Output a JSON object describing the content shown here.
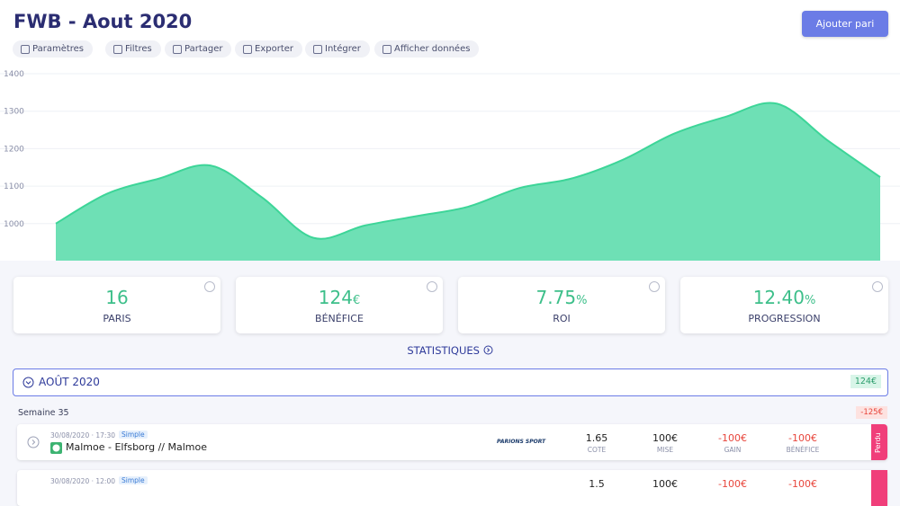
{
  "header": {
    "title": "FWB - Aout 2020",
    "button": "Ajouter pari"
  },
  "toolbar": [
    "Paramètres",
    "Filtres",
    "Partager",
    "Exporter",
    "Intégrer",
    "Afficher données"
  ],
  "chart_data": {
    "type": "area",
    "values": [
      1000,
      1080,
      1120,
      1155,
      1070,
      962,
      995,
      1020,
      1045,
      1095,
      1120,
      1170,
      1240,
      1285,
      1320,
      1220,
      1124
    ],
    "color": "#6ee0b5",
    "line_color": "#3dd598",
    "ylim": [
      900,
      1400
    ],
    "yticks": [
      1000,
      1100,
      1200,
      1300,
      1400
    ],
    "grid": true
  },
  "stats": [
    {
      "value": "16",
      "unit": null,
      "label": "PARIS"
    },
    {
      "value": "124",
      "unit": "€",
      "label": "BÉNÉFICE"
    },
    {
      "value": "7.75",
      "unit": "%",
      "label": "ROI"
    },
    {
      "value": "12.40",
      "unit": "%",
      "label": "PROGRESSION"
    }
  ],
  "statistiques": "STATISTIQUES",
  "month": {
    "label": "AOÛT 2020",
    "total": "124€"
  },
  "week": {
    "label": "Semaine 35",
    "total": "-125€"
  },
  "bets": [
    {
      "date": "30/08/2020 · 17:30",
      "type": "Simple",
      "match": "Malmoe - Elfsborg // Malmoe",
      "bookmaker": "PARIONS SPORT",
      "cote": "1.65",
      "cote_label": "COTE",
      "mise": "100€",
      "mise_label": "MISE",
      "gain": "-100€",
      "gain_label": "GAIN",
      "benefice": "-100€",
      "benefice_label": "BÉNÉFICE",
      "status": "Perdu"
    },
    {
      "date": "30/08/2020 · 12:00",
      "type": "Simple",
      "cote": "1.5",
      "mise": "100€",
      "gain": "-100€",
      "benefice": "-100€"
    }
  ]
}
